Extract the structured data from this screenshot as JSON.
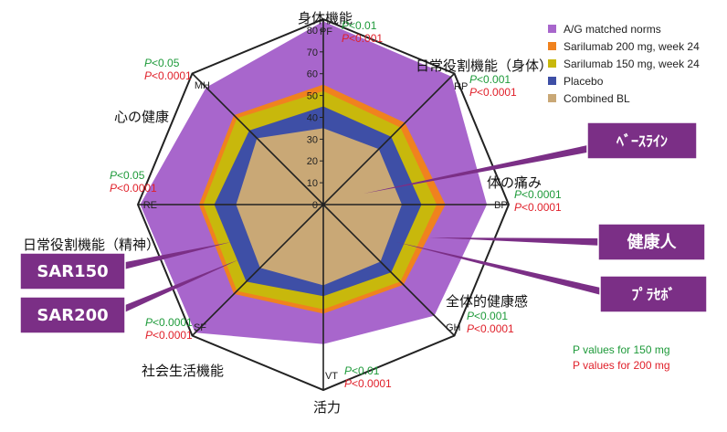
{
  "chart_data": {
    "type": "radar",
    "axes": [
      {
        "abbr": "PF",
        "label_ja": "身体機能"
      },
      {
        "abbr": "RP",
        "label_ja": "日常役割機能（身体）"
      },
      {
        "abbr": "BP",
        "label_ja": "体の痛み"
      },
      {
        "abbr": "GH",
        "label_ja": "全体的健康感"
      },
      {
        "abbr": "VT",
        "label_ja": "活力"
      },
      {
        "abbr": "SF",
        "label_ja": "社会生活機能"
      },
      {
        "abbr": "RE",
        "label_ja": "日常役割機能（精神）"
      },
      {
        "abbr": "MH",
        "label_ja": "心の健康"
      }
    ],
    "radial_ticks": [
      "0",
      "10",
      "20",
      "30",
      "40",
      "50",
      "60",
      "70",
      "80"
    ],
    "rlim": [
      0,
      80
    ],
    "series": [
      {
        "name": "A/G matched norms",
        "color": "#a866cc",
        "values": [
          84,
          83,
          75,
          72,
          64,
          83,
          84,
          76
        ]
      },
      {
        "name": "Sarilumab 200 mg, week 24",
        "color": "#f0821e",
        "values": [
          55,
          53,
          56,
          52,
          50,
          58,
          57,
          58
        ]
      },
      {
        "name": "Sarilumab 150 mg, week 24",
        "color": "#c8b80c",
        "values": [
          52,
          50,
          52,
          50,
          48,
          56,
          55,
          56
        ]
      },
      {
        "name": "Placebo",
        "color": "#3e4fa6",
        "values": [
          45,
          44,
          45,
          44,
          42,
          50,
          50,
          48
        ]
      },
      {
        "name": "Combined BL",
        "color": "#c9a876",
        "values": [
          35,
          36,
          36,
          37,
          37,
          41,
          40,
          43
        ]
      }
    ],
    "pvalues": {
      "PF": {
        "p150": "P<0.01",
        "p200": "P<0.001"
      },
      "RP": {
        "p150": "P<0.001",
        "p200": "P<0.0001"
      },
      "BP": {
        "p150": "P<0.0001",
        "p200": "P<0.0001"
      },
      "GH": {
        "p150": "P<0.001",
        "p200": "P<0.0001"
      },
      "VT": {
        "p150": "P<0.01",
        "p200": "P<0.0001"
      },
      "SF": {
        "p150": "P<0.0001",
        "p200": "P<0.0001"
      },
      "RE": {
        "p150": "P<0.05",
        "p200": "P<0.0001"
      },
      "MH": {
        "p150": "P<0.05",
        "p200": "P<0.0001"
      }
    },
    "pvalue_colors": {
      "p150": "#1e9a3a",
      "p200": "#e0202a"
    },
    "footnote": {
      "line150": "P values for 150 mg",
      "line200": "P values for 200 mg"
    },
    "callouts": [
      {
        "text": "ﾍﾞｰｽﾗｲﾝ"
      },
      {
        "text": "健康人"
      },
      {
        "text": "ﾌﾟﾗｾﾎﾞ"
      },
      {
        "text": "SAR150"
      },
      {
        "text": "SAR200"
      }
    ],
    "callout_color": "#7b2f86"
  }
}
